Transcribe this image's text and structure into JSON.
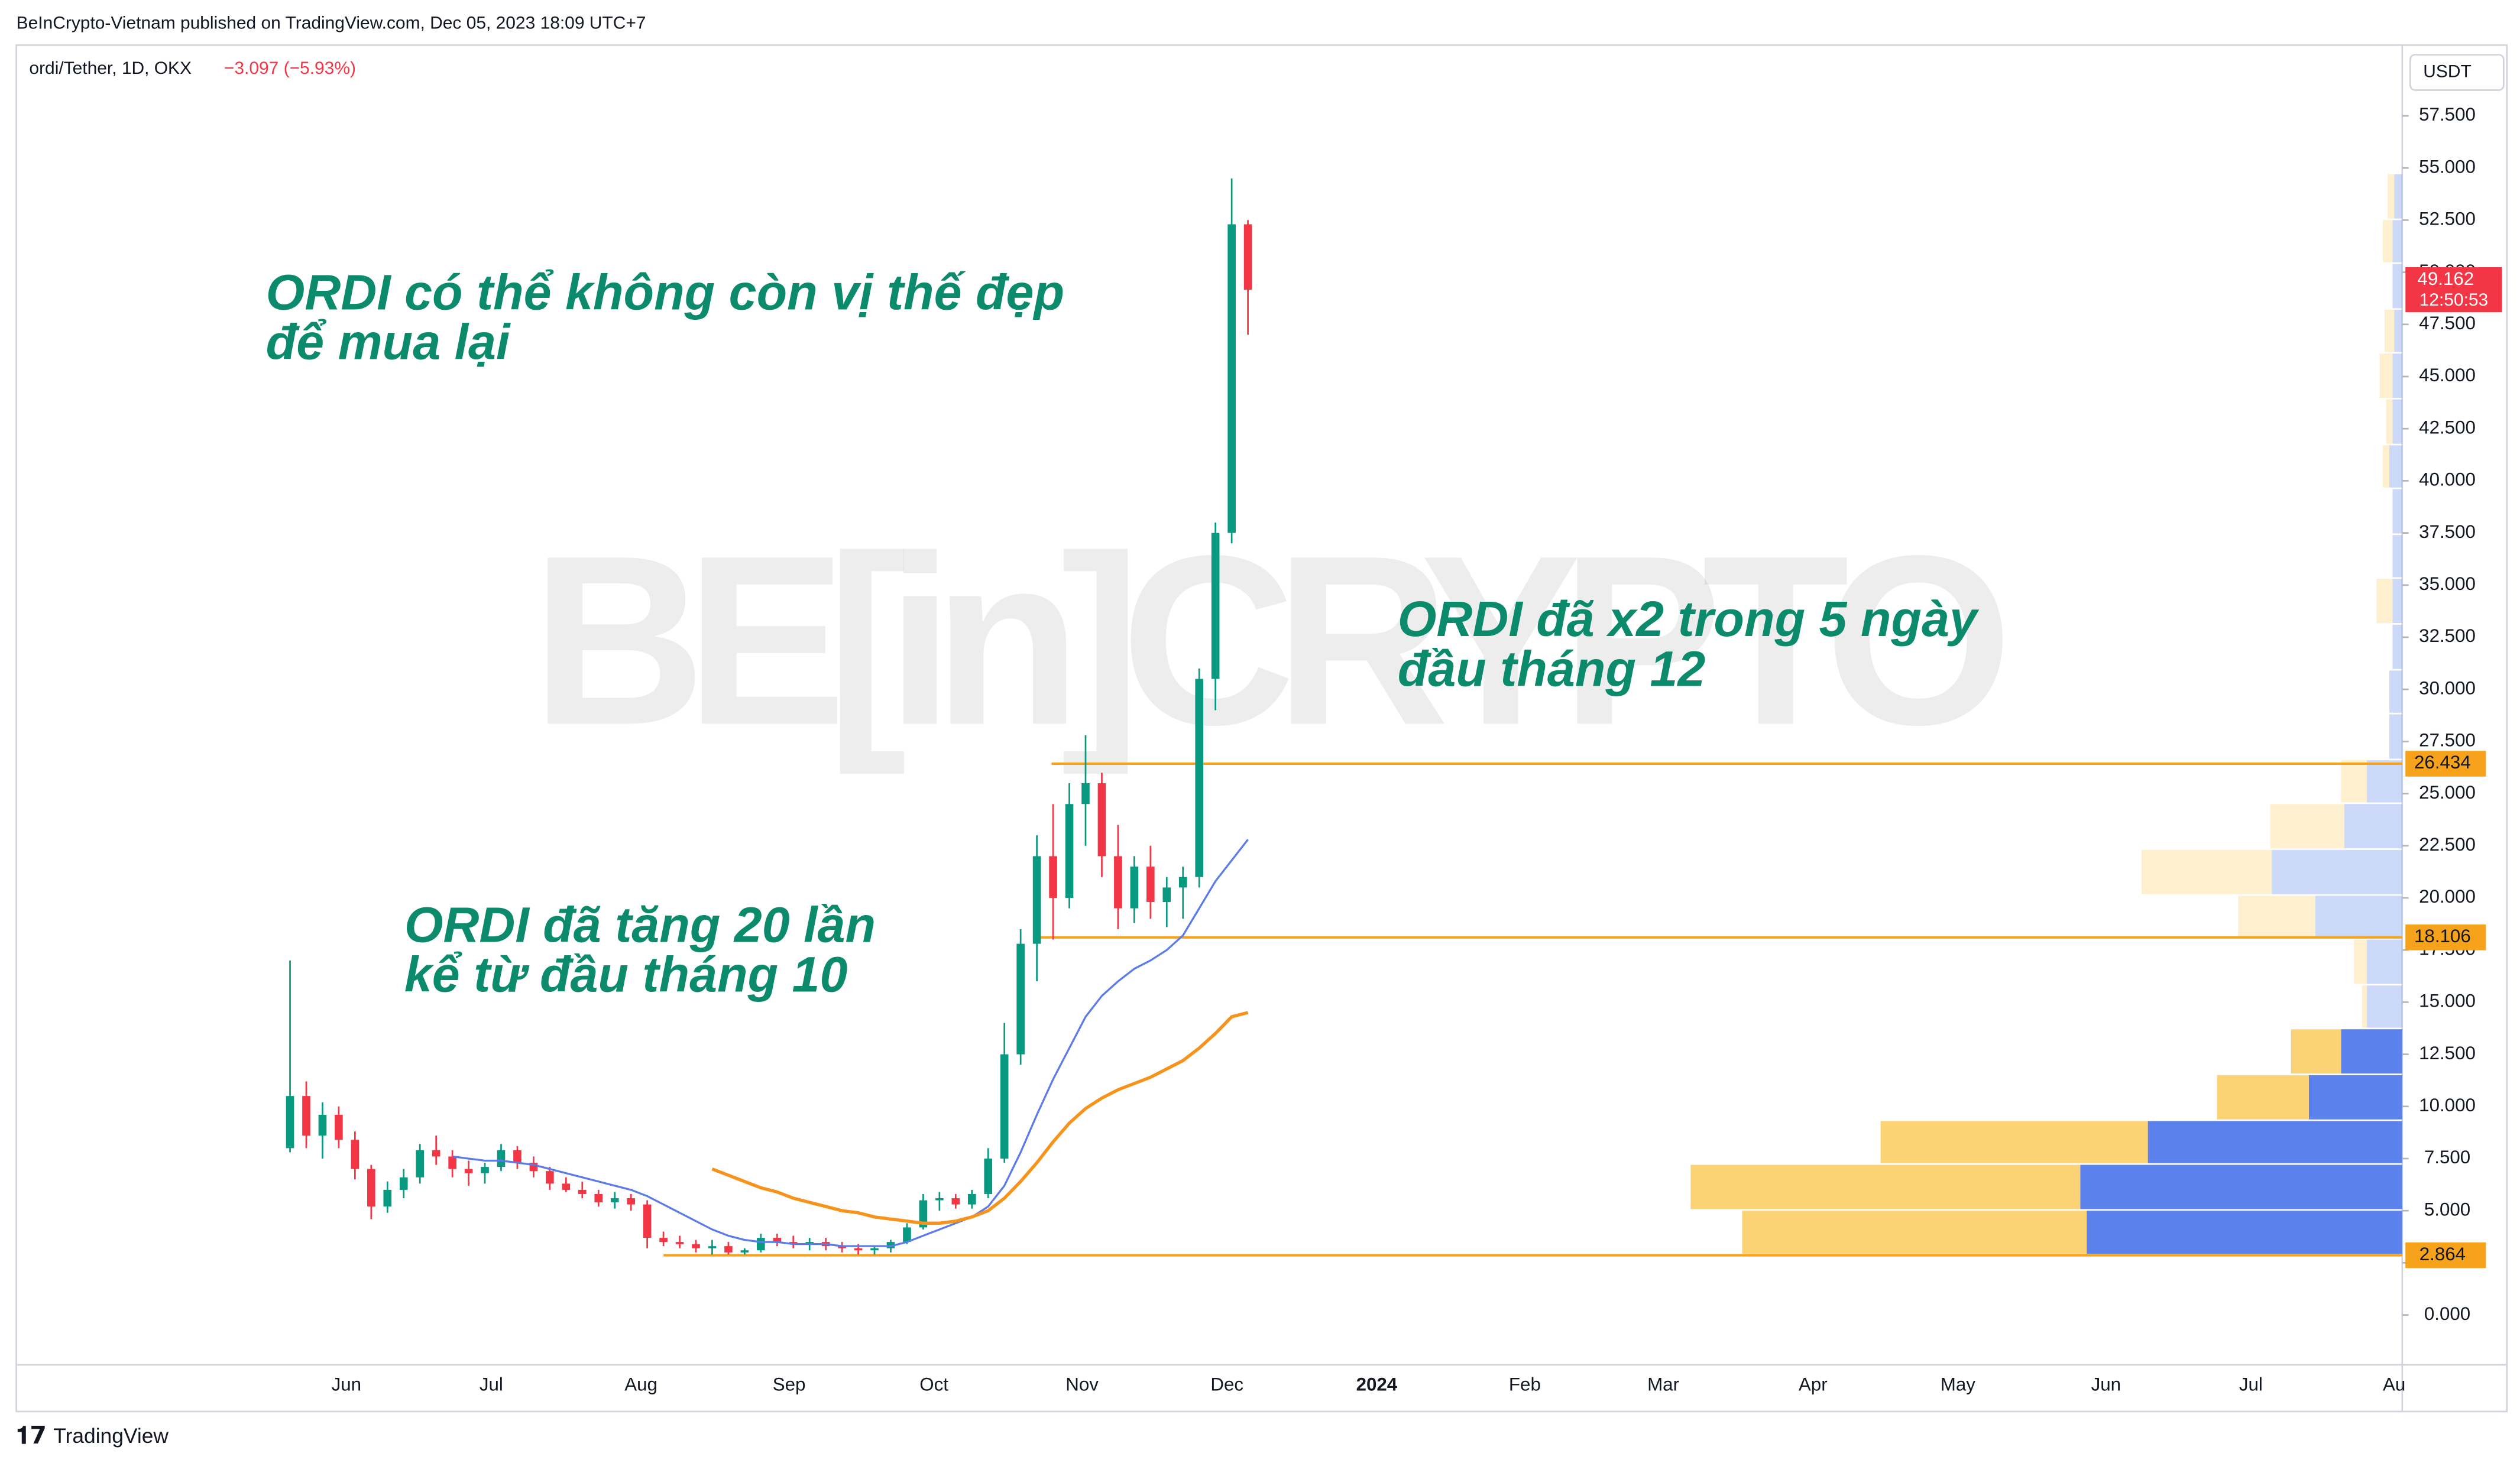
{
  "chart_data": {
    "type": "candlestick",
    "header": "BeInCrypto-Vietnam published on TradingView.com, Dec 05, 2023 18:09 UTC+7",
    "title": "ordi/Tether, 1D, OKX",
    "change": "−3.097 (−5.93%)",
    "currency": "USDT",
    "watermark": "BE[in]CRYPTO",
    "footer": "TradingView",
    "annotations": [
      [
        "ORDI có thể không còn vị thế đẹp",
        "để mua lại"
      ],
      [
        "ORDI đã x2 trong 5 ngày",
        "đầu tháng 12"
      ],
      [
        "ORDI đã tăng 20 lần",
        "kể từ đầu tháng 10"
      ]
    ],
    "x_labels": [
      "Jun",
      "Jul",
      "Aug",
      "Sep",
      "Oct",
      "Nov",
      "Dec",
      "2024",
      "Feb",
      "Mar",
      "Apr",
      "May",
      "Jun",
      "Jul",
      "Au"
    ],
    "ylim": [
      -2.39,
      60.74
    ],
    "yticks": [
      {
        "value": 0,
        "label": "0.000"
      },
      {
        "value": 2.5,
        "label": "2.500"
      },
      {
        "value": 5,
        "label": "5.000"
      },
      {
        "value": 7.5,
        "label": "7.500"
      },
      {
        "value": 10,
        "label": "10.000"
      },
      {
        "value": 12.5,
        "label": "12.500"
      },
      {
        "value": 15,
        "label": "15.000"
      },
      {
        "value": 17.5,
        "label": "17.500"
      },
      {
        "value": 20,
        "label": "20.000"
      },
      {
        "value": 22.5,
        "label": "22.500"
      },
      {
        "value": 25,
        "label": "25.000"
      },
      {
        "value": 27.5,
        "label": "27.500"
      },
      {
        "value": 30,
        "label": "30.000"
      },
      {
        "value": 32.5,
        "label": "32.500"
      },
      {
        "value": 35,
        "label": "35.000"
      },
      {
        "value": 37.5,
        "label": "37.500"
      },
      {
        "value": 40,
        "label": "40.000"
      },
      {
        "value": 42.5,
        "label": "42.500"
      },
      {
        "value": 45,
        "label": "45.000"
      },
      {
        "value": 47.5,
        "label": "47.500"
      },
      {
        "value": 50,
        "label": "50.000"
      },
      {
        "value": 52.5,
        "label": "52.500"
      },
      {
        "value": 55,
        "label": "55.000"
      },
      {
        "value": 57.5,
        "label": "57.500"
      }
    ],
    "up_color": "#089981",
    "down_color": "#f23645",
    "open": [
      8.0,
      10.5,
      8.6,
      9.6,
      8.4,
      7.0,
      5.2,
      6.0,
      6.6,
      7.9,
      7.6,
      7.0,
      6.8,
      7.1,
      7.9,
      7.3,
      6.9,
      6.3,
      6.0,
      5.8,
      5.4,
      5.6,
      5.3,
      3.7,
      3.5,
      3.4,
      3.2,
      3.3,
      3.0,
      3.1,
      3.7,
      3.5,
      3.4,
      3.5,
      3.3,
      3.2,
      3.1,
      3.2,
      3.5,
      4.2,
      5.5,
      5.6,
      5.3,
      5.8,
      7.5,
      12.5,
      17.8,
      22.0,
      20.0,
      24.5,
      25.5,
      22.0,
      19.5,
      21.5,
      19.8,
      20.5,
      21.0,
      30.5,
      37.5,
      52.3
    ],
    "high": [
      17.0,
      11.2,
      10.2,
      10.0,
      8.8,
      7.2,
      6.4,
      7.0,
      8.2,
      8.6,
      7.9,
      7.4,
      7.3,
      8.2,
      8.1,
      7.6,
      7.1,
      6.6,
      6.4,
      6.0,
      5.9,
      5.8,
      5.5,
      4.0,
      3.8,
      3.6,
      3.6,
      3.5,
      3.2,
      3.9,
      3.9,
      3.8,
      3.7,
      3.7,
      3.5,
      3.4,
      3.3,
      3.6,
      4.4,
      5.8,
      5.9,
      5.8,
      6.0,
      8.0,
      14.0,
      18.5,
      23.0,
      24.5,
      25.5,
      27.8,
      26.0,
      23.5,
      22.0,
      22.5,
      21.0,
      21.5,
      31.0,
      38.0,
      54.5,
      52.5
    ],
    "low": [
      7.8,
      8.0,
      7.5,
      8.0,
      6.5,
      4.6,
      4.9,
      5.6,
      6.3,
      7.2,
      6.6,
      6.2,
      6.3,
      6.9,
      7.0,
      6.6,
      6.0,
      5.9,
      5.6,
      5.2,
      5.1,
      5.0,
      3.2,
      3.3,
      3.2,
      3.0,
      2.9,
      2.9,
      2.9,
      3.0,
      3.3,
      3.2,
      3.1,
      3.1,
      3.0,
      2.9,
      2.9,
      3.0,
      3.4,
      4.1,
      5.0,
      5.1,
      5.1,
      5.6,
      7.3,
      12.0,
      16.0,
      18.0,
      19.5,
      22.5,
      21.0,
      18.5,
      18.8,
      19.0,
      18.6,
      19.0,
      20.5,
      29.0,
      37.0,
      47.0
    ],
    "close": [
      10.5,
      8.6,
      9.6,
      8.4,
      7.0,
      5.2,
      6.0,
      6.6,
      7.9,
      7.6,
      7.0,
      6.8,
      7.1,
      7.9,
      7.3,
      6.9,
      6.3,
      6.0,
      5.8,
      5.4,
      5.6,
      5.3,
      3.7,
      3.5,
      3.4,
      3.2,
      3.3,
      3.0,
      3.1,
      3.7,
      3.5,
      3.4,
      3.5,
      3.3,
      3.2,
      3.1,
      3.2,
      3.5,
      4.2,
      5.5,
      5.6,
      5.3,
      5.8,
      7.5,
      12.5,
      17.8,
      22.0,
      20.0,
      24.5,
      25.5,
      22.0,
      19.5,
      21.5,
      19.8,
      20.5,
      21.0,
      30.5,
      37.5,
      52.3,
      49.162
    ],
    "last_price": 49.162,
    "countdown": "12:50:53",
    "last_color": "#f23645",
    "moving_averages": [
      {
        "color": "#5b7be8",
        "values": [
          null,
          null,
          null,
          null,
          null,
          null,
          null,
          null,
          null,
          null,
          7.6,
          7.5,
          7.4,
          7.4,
          7.3,
          7.2,
          7.0,
          6.8,
          6.6,
          6.4,
          6.2,
          6.0,
          5.7,
          5.3,
          4.9,
          4.5,
          4.1,
          3.8,
          3.6,
          3.5,
          3.5,
          3.4,
          3.4,
          3.4,
          3.3,
          3.3,
          3.3,
          3.3,
          3.5,
          3.8,
          4.1,
          4.4,
          4.7,
          5.2,
          6.2,
          7.8,
          9.6,
          11.3,
          12.8,
          14.3,
          15.3,
          16.0,
          16.6,
          17.0,
          17.5,
          18.2,
          19.5,
          20.8,
          21.8,
          22.8
        ]
      },
      {
        "color": "#f7931a",
        "values": [
          null,
          null,
          null,
          null,
          null,
          null,
          null,
          null,
          null,
          null,
          null,
          null,
          null,
          null,
          null,
          null,
          null,
          null,
          null,
          null,
          null,
          null,
          null,
          null,
          null,
          null,
          7.0,
          6.7,
          6.4,
          6.1,
          5.9,
          5.6,
          5.4,
          5.2,
          5.0,
          4.9,
          4.7,
          4.6,
          4.5,
          4.4,
          4.4,
          4.5,
          4.7,
          5.0,
          5.6,
          6.4,
          7.3,
          8.3,
          9.2,
          9.9,
          10.4,
          10.8,
          11.1,
          11.4,
          11.8,
          12.2,
          12.8,
          13.5,
          14.3,
          14.5
        ]
      }
    ],
    "levels": [
      26.434,
      18.106,
      2.864
    ],
    "level_color": "#f7a21b",
    "volume_profile": {
      "bins": [
        2.86,
        5.0,
        7.2,
        9.3,
        11.5,
        13.7,
        15.8,
        18.0,
        20.1,
        22.3,
        24.5,
        26.6,
        28.8,
        30.9,
        33.1,
        35.3,
        37.4,
        39.6,
        41.7,
        43.9,
        46.1,
        48.2,
        50.4,
        52.5,
        54.7
      ],
      "up": [
        196,
        200,
        158,
        58,
        38,
        22,
        22,
        54,
        81,
        36,
        22,
        8,
        8,
        6,
        6,
        6,
        6,
        8,
        6,
        6,
        5,
        6,
        6,
        5
      ],
      "down": [
        214,
        242,
        166,
        57,
        31,
        3,
        8,
        48,
        81,
        46,
        16,
        0,
        0,
        0,
        10,
        0,
        0,
        4,
        4,
        8,
        6,
        0,
        6,
        4
      ],
      "up_color": "#5b82ec",
      "down_color": "#fbd374"
    }
  }
}
